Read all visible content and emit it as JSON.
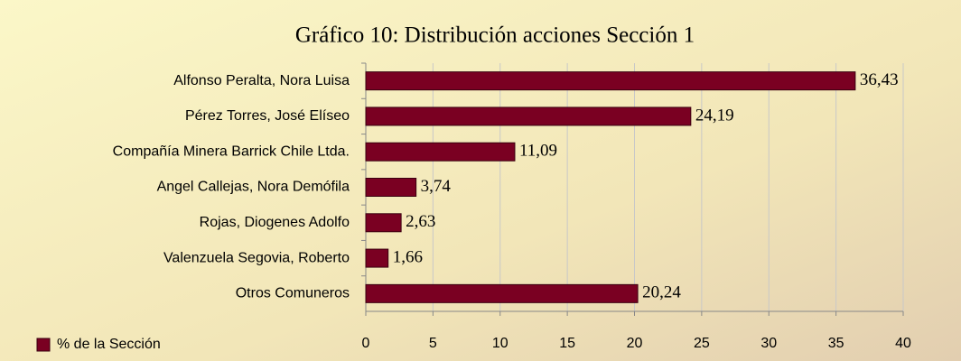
{
  "chart_data": {
    "type": "bar",
    "orientation": "horizontal",
    "title": "Gráfico 10: Distribución acciones Sección 1",
    "categories": [
      "Alfonso Peralta, Nora Luisa",
      "Pérez Torres, José Elíseo",
      "Compañía Minera Barrick Chile Ltda.",
      "Angel Callejas, Nora Demófila",
      "Rojas, Diogenes Adolfo",
      "Valenzuela Segovia, Roberto",
      "Otros Comuneros"
    ],
    "series": [
      {
        "name": "% de la Sección",
        "color": "#7a0022",
        "values": [
          36.43,
          24.19,
          11.09,
          3.74,
          2.63,
          1.66,
          20.24
        ],
        "value_labels": [
          "36,43",
          "24,19",
          "11,09",
          "3,74",
          "2,63",
          "1,66",
          "20,24"
        ]
      }
    ],
    "xlim": [
      0,
      40
    ],
    "xticks": [
      0,
      5,
      10,
      15,
      20,
      25,
      30,
      35,
      40
    ],
    "grid": true,
    "legend": "bottom-left"
  }
}
